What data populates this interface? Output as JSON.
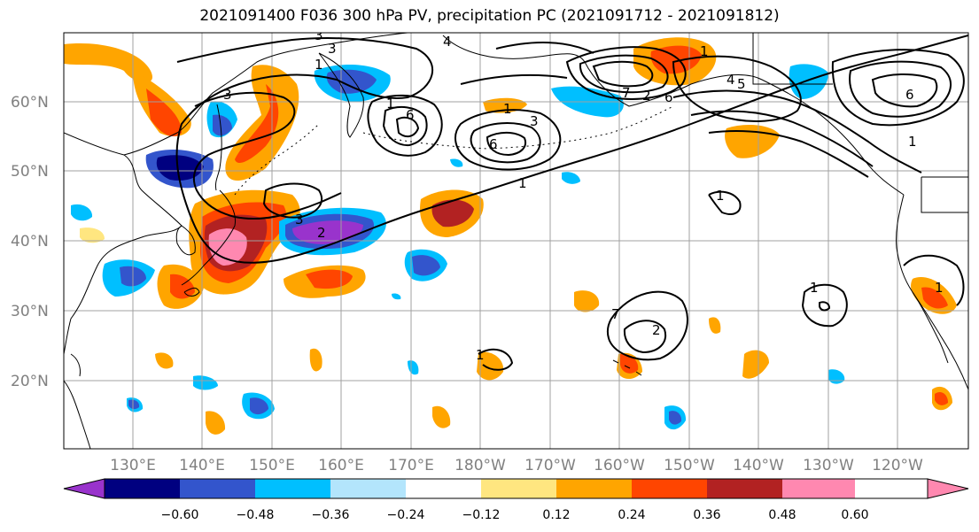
{
  "title": "2021091400 F036 300 hPa PV, precipitation PC (2021091712 - 2021091812)",
  "lat_labels": [
    "60°N",
    "50°N",
    "40°N",
    "30°N",
    "20°N"
  ],
  "lon_labels": [
    "130°E",
    "140°E",
    "150°E",
    "160°E",
    "170°E",
    "180°W",
    "170°W",
    "160°W",
    "150°W",
    "140°W",
    "130°W",
    "120°W"
  ],
  "colorbar": {
    "colors": [
      "#9933cc",
      "#000080",
      "#3355cc",
      "#00bfff",
      "#b3e5fc",
      "#ffffff",
      "#ffe680",
      "#ffa500",
      "#ff4500",
      "#b22222",
      "#ff88b0"
    ],
    "tick_labels": [
      "−0.60",
      "−0.48",
      "−0.36",
      "−0.24",
      "−0.12",
      "0.12",
      "0.24",
      "0.36",
      "0.48",
      "0.60"
    ]
  },
  "contour_labels": [
    "3",
    "1",
    "4",
    "3",
    "6",
    "1",
    "3",
    "6",
    "1",
    "4",
    "5",
    "7",
    "6",
    "3",
    "6",
    "1",
    "1",
    "2",
    "1",
    "1",
    "3",
    "2",
    "1",
    "1",
    "7",
    "2",
    "1"
  ]
}
